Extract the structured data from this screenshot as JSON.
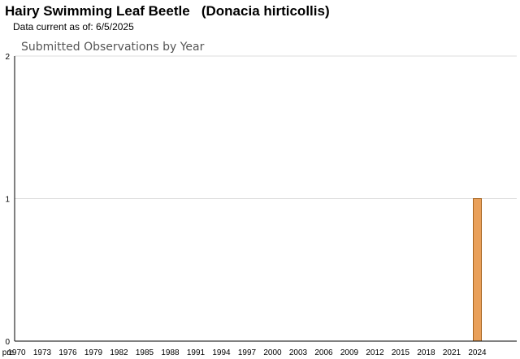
{
  "header": {
    "title": "Hairy Swimming Leaf Beetle   (Donacia hirticollis)",
    "subtitle": "Data current as of: 6/5/2025"
  },
  "chart_data": {
    "type": "bar",
    "title": "Submitted Observations by Year",
    "xlabel": "",
    "ylabel": "",
    "ylim": [
      0,
      2
    ],
    "yticks": [
      0,
      1,
      2
    ],
    "grid": true,
    "categories": [
      "pre",
      "1970",
      "1971",
      "1972",
      "1973",
      "1974",
      "1975",
      "1976",
      "1977",
      "1978",
      "1979",
      "1980",
      "1981",
      "1982",
      "1983",
      "1984",
      "1985",
      "1986",
      "1987",
      "1988",
      "1989",
      "1990",
      "1991",
      "1992",
      "1993",
      "1994",
      "1995",
      "1996",
      "1997",
      "1998",
      "1999",
      "2000",
      "2001",
      "2002",
      "2003",
      "2004",
      "2005",
      "2006",
      "2007",
      "2008",
      "2009",
      "2010",
      "2011",
      "2012",
      "2013",
      "2014",
      "2015",
      "2016",
      "2017",
      "2018",
      "2019",
      "2020",
      "2021",
      "2022",
      "2023",
      "2024",
      "2025"
    ],
    "xtick_labels": [
      "pre",
      "1970",
      "1973",
      "1976",
      "1979",
      "1982",
      "1985",
      "1988",
      "1991",
      "1994",
      "1997",
      "2000",
      "2003",
      "2006",
      "2009",
      "2012",
      "2015",
      "2018",
      "2021",
      "2024"
    ],
    "values": [
      0,
      0,
      0,
      0,
      0,
      0,
      0,
      0,
      0,
      0,
      0,
      0,
      0,
      0,
      0,
      0,
      0,
      0,
      0,
      0,
      0,
      0,
      0,
      0,
      0,
      0,
      0,
      0,
      0,
      0,
      0,
      0,
      0,
      0,
      0,
      0,
      0,
      0,
      0,
      0,
      0,
      0,
      0,
      0,
      0,
      0,
      0,
      0,
      0,
      0,
      0,
      0,
      0,
      0,
      0,
      1,
      0
    ],
    "colors": {
      "bar_fill": "#e9a05a",
      "bar_stroke": "#a8641e",
      "grid": "#dddddd",
      "axis": "#000000"
    }
  }
}
